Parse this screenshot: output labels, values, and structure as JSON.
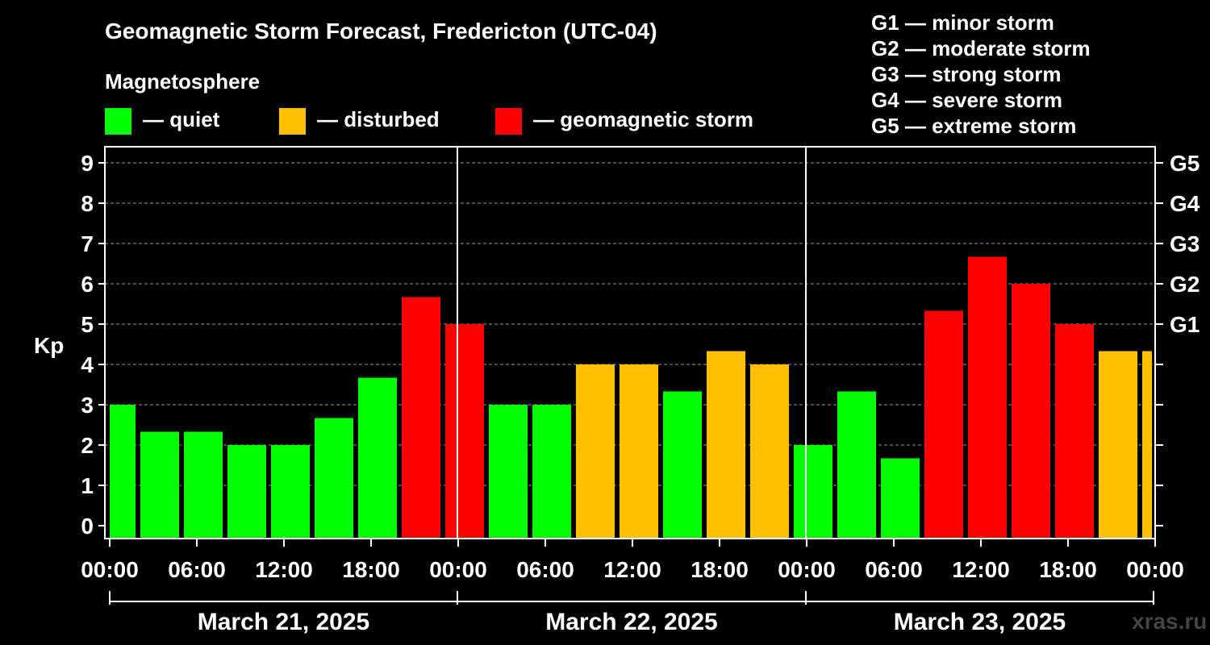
{
  "chart_data": {
    "type": "bar",
    "title": "Geomagnetic Storm Forecast, Fredericton (UTC-04)",
    "ylabel": "Kp",
    "ylim": [
      0,
      9
    ],
    "yticks": [
      "0",
      "1",
      "2",
      "3",
      "4",
      "5",
      "6",
      "7",
      "8",
      "9"
    ],
    "right_ticks": [
      {
        "kp": 5,
        "label": "G1"
      },
      {
        "kp": 6,
        "label": "G2"
      },
      {
        "kp": 7,
        "label": "G3"
      },
      {
        "kp": 8,
        "label": "G4"
      },
      {
        "kp": 9,
        "label": "G5"
      }
    ],
    "x_ticks": [
      "00:00",
      "06:00",
      "12:00",
      "18:00",
      "00:00",
      "06:00",
      "12:00",
      "18:00",
      "00:00",
      "06:00",
      "12:00",
      "18:00",
      "00:00"
    ],
    "days": [
      "March 21, 2025",
      "March 22, 2025",
      "March 23, 2025"
    ],
    "legend_title": "Magnetosphere",
    "legend": [
      {
        "label": "— quiet",
        "color": "#00ff00",
        "status": "quiet"
      },
      {
        "label": "— disturbed",
        "color": "#ffc000",
        "status": "disturbed"
      },
      {
        "label": "— geomagnetic storm",
        "color": "#ff0000",
        "status": "storm"
      }
    ],
    "storm_scale": [
      "G1 — minor storm",
      "G2 — moderate storm",
      "G3 — strong storm",
      "G4 — severe storm",
      "G5 — extreme storm"
    ],
    "values": [
      3.0,
      2.33,
      2.33,
      2.0,
      2.0,
      2.67,
      3.67,
      5.67,
      5.0,
      3.0,
      3.0,
      4.0,
      4.0,
      3.33,
      4.33,
      4.0,
      2.0,
      3.33,
      1.67,
      5.33,
      6.67,
      6.0,
      5.0,
      4.33,
      4.33
    ],
    "status": [
      "quiet",
      "quiet",
      "quiet",
      "quiet",
      "quiet",
      "quiet",
      "quiet",
      "storm",
      "storm",
      "quiet",
      "quiet",
      "disturbed",
      "disturbed",
      "quiet",
      "disturbed",
      "disturbed",
      "quiet",
      "quiet",
      "quiet",
      "storm",
      "storm",
      "storm",
      "storm",
      "disturbed",
      "disturbed"
    ],
    "source": "xras.ru"
  }
}
